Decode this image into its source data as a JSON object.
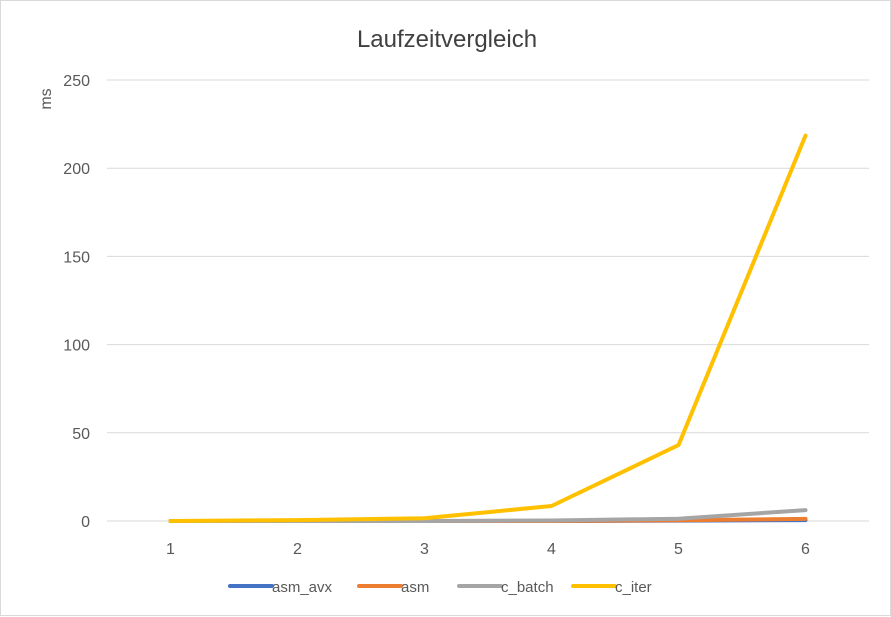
{
  "chart_data": {
    "type": "line",
    "title": "Laufzeitvergleich",
    "xlabel": "",
    "ylabel": "ms",
    "ylim": [
      0,
      250
    ],
    "yticks": [
      "0",
      "50",
      "100",
      "150",
      "200",
      "250"
    ],
    "categories": [
      "1",
      "2",
      "3",
      "4",
      "5",
      "6"
    ],
    "grid": true,
    "legend_position": "bottom",
    "series": [
      {
        "name": "asm_avx",
        "color": "#4472C4",
        "values": [
          0,
          0,
          0,
          0,
          0.2,
          0.5
        ]
      },
      {
        "name": "asm",
        "color": "#ED7D31",
        "values": [
          0,
          0,
          0,
          0,
          0.4,
          1.2
        ]
      },
      {
        "name": "c_batch",
        "color": "#A5A5A5",
        "values": [
          0,
          0,
          0,
          0.3,
          1.3,
          6.2
        ]
      },
      {
        "name": "c_iter",
        "color": "#FFC000",
        "values": [
          0,
          0.5,
          1.6,
          8.5,
          43,
          218.5
        ]
      }
    ]
  }
}
